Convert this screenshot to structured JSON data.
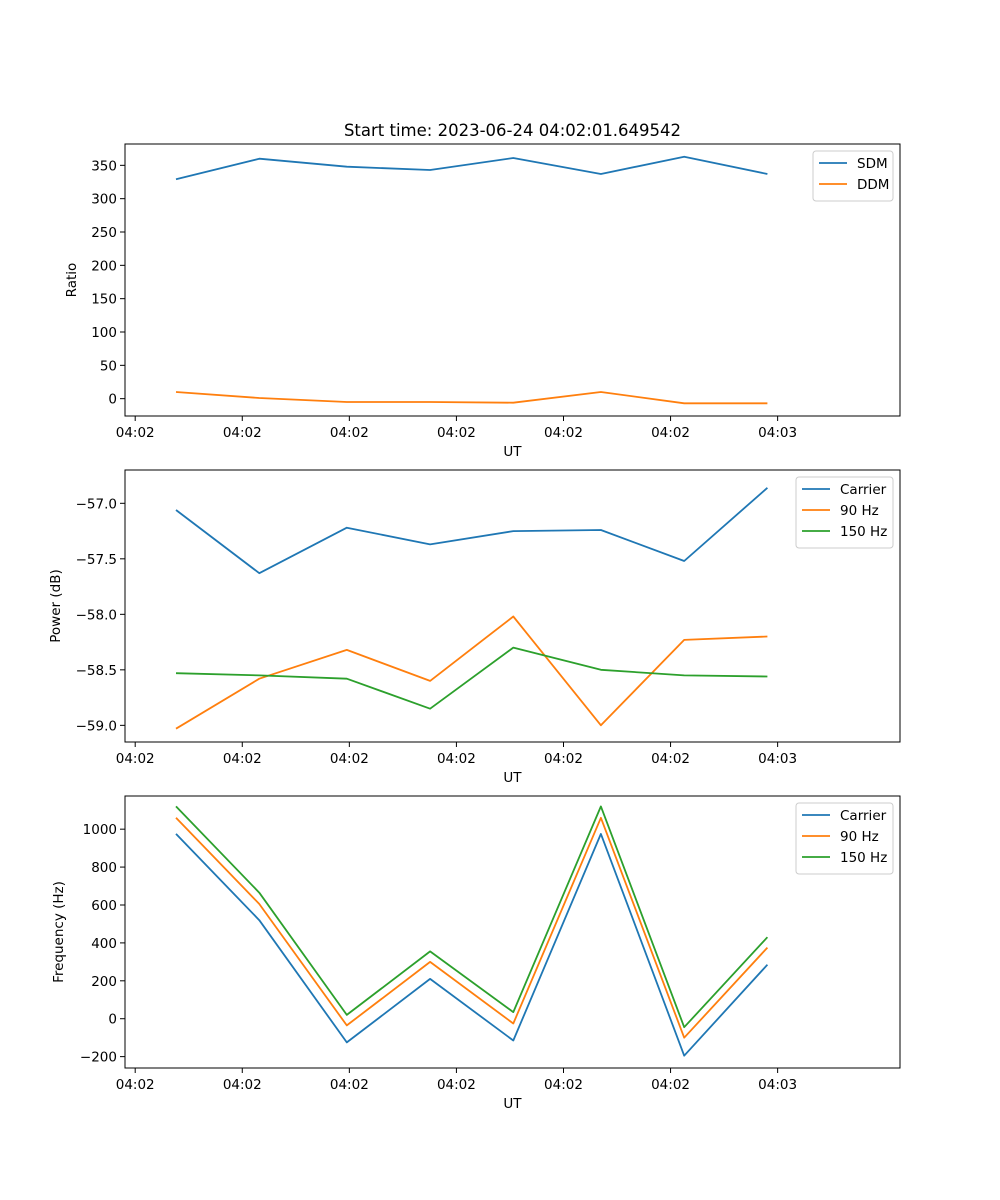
{
  "figure": {
    "title": "Start time: 2023-06-24 04:02:01.649542"
  },
  "chart_data": [
    {
      "type": "line",
      "title": "Start time: 2023-06-24 04:02:01.649542",
      "xlabel": "UT",
      "ylabel": "Ratio",
      "grid": false,
      "legend_position": "top-right",
      "x_ticks": [
        "04:02",
        "04:02",
        "04:02",
        "04:02",
        "04:02",
        "04:02",
        "04:03"
      ],
      "xlim": [
        -0.1,
        9.02
      ],
      "x": [
        0.5,
        1.48,
        2.51,
        3.49,
        4.47,
        5.5,
        6.48,
        7.46
      ],
      "y_ticks": [
        0,
        50,
        100,
        150,
        200,
        250,
        300,
        350
      ],
      "ylim": [
        -26,
        382
      ],
      "series": [
        {
          "name": "SDM",
          "color": "#1f77b4",
          "values": [
            329,
            360,
            348,
            343,
            361,
            337,
            363,
            337
          ]
        },
        {
          "name": "DDM",
          "color": "#ff7f0e",
          "values": [
            10,
            1,
            -5,
            -5,
            -6,
            10,
            -7,
            -7
          ]
        }
      ]
    },
    {
      "type": "line",
      "title": "",
      "xlabel": "UT",
      "ylabel": "Power (dB)",
      "grid": false,
      "legend_position": "top-right",
      "x_ticks": [
        "04:02",
        "04:02",
        "04:02",
        "04:02",
        "04:02",
        "04:02",
        "04:03"
      ],
      "xlim": [
        -0.1,
        9.02
      ],
      "x": [
        0.5,
        1.48,
        2.51,
        3.49,
        4.47,
        5.5,
        6.48,
        7.46
      ],
      "y_ticks": [
        -57.0,
        -57.5,
        -58.0,
        -58.5,
        -59.0
      ],
      "ylim": [
        -59.15,
        -56.7
      ],
      "series": [
        {
          "name": "Carrier",
          "color": "#1f77b4",
          "values": [
            -57.06,
            -57.63,
            -57.22,
            -57.37,
            -57.25,
            -57.24,
            -57.52,
            -56.86
          ]
        },
        {
          "name": "90 Hz",
          "color": "#ff7f0e",
          "values": [
            -59.03,
            -58.58,
            -58.32,
            -58.6,
            -58.02,
            -59.0,
            -58.23,
            -58.2
          ]
        },
        {
          "name": "150 Hz",
          "color": "#2ca02c",
          "values": [
            -58.53,
            -58.55,
            -58.58,
            -58.85,
            -58.3,
            -58.5,
            -58.55,
            -58.56
          ]
        }
      ]
    },
    {
      "type": "line",
      "title": "",
      "xlabel": "UT",
      "ylabel": "Frequency (Hz)",
      "grid": false,
      "legend_position": "top-right",
      "x_ticks": [
        "04:02",
        "04:02",
        "04:02",
        "04:02",
        "04:02",
        "04:02",
        "04:03"
      ],
      "xlim": [
        -0.1,
        9.02
      ],
      "x": [
        0.5,
        1.48,
        2.51,
        3.49,
        4.47,
        5.5,
        6.48,
        7.46
      ],
      "y_ticks": [
        -200,
        0,
        200,
        400,
        600,
        800,
        1000
      ],
      "ylim": [
        -260,
        1175
      ],
      "series": [
        {
          "name": "Carrier",
          "color": "#1f77b4",
          "values": [
            975,
            520,
            -125,
            210,
            -115,
            975,
            -195,
            285
          ]
        },
        {
          "name": "90 Hz",
          "color": "#ff7f0e",
          "values": [
            1060,
            605,
            -35,
            300,
            -25,
            1060,
            -100,
            375
          ]
        },
        {
          "name": "150 Hz",
          "color": "#2ca02c",
          "values": [
            1120,
            665,
            20,
            355,
            35,
            1120,
            -45,
            430
          ]
        }
      ]
    }
  ]
}
